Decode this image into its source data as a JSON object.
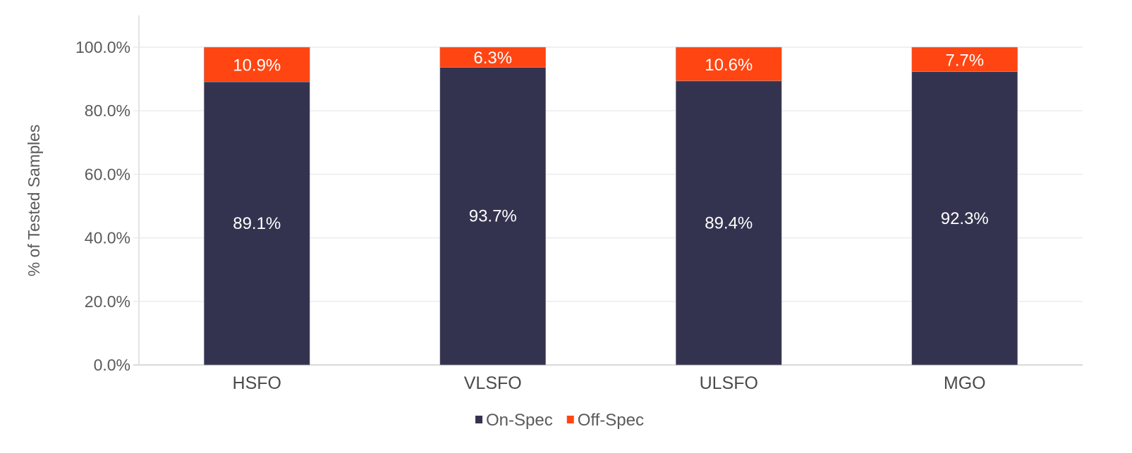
{
  "chart_data": {
    "type": "bar",
    "stacked": true,
    "title": "",
    "xlabel": "",
    "ylabel": "% of Tested Samples",
    "categories": [
      "HSFO",
      "VLSFO",
      "ULSFO",
      "MGO"
    ],
    "series": [
      {
        "name": "On-Spec",
        "values": [
          89.1,
          93.7,
          89.4,
          92.3
        ],
        "labels": [
          "89.1%",
          "93.7%",
          "89.4%",
          "92.3%"
        ],
        "color": "#34334f"
      },
      {
        "name": "Off-Spec",
        "values": [
          10.9,
          6.3,
          10.6,
          7.7
        ],
        "labels": [
          "10.9%",
          "6.3%",
          "10.6%",
          "7.7%"
        ],
        "color": "#ff4512"
      }
    ],
    "yticks": [
      0,
      20,
      40,
      60,
      80,
      100
    ],
    "ytick_labels": [
      "0.0%",
      "20.0%",
      "40.0%",
      "60.0%",
      "80.0%",
      "100.0%"
    ],
    "ylim": [
      0,
      110
    ],
    "grid": true,
    "legend": "bottom-center"
  }
}
